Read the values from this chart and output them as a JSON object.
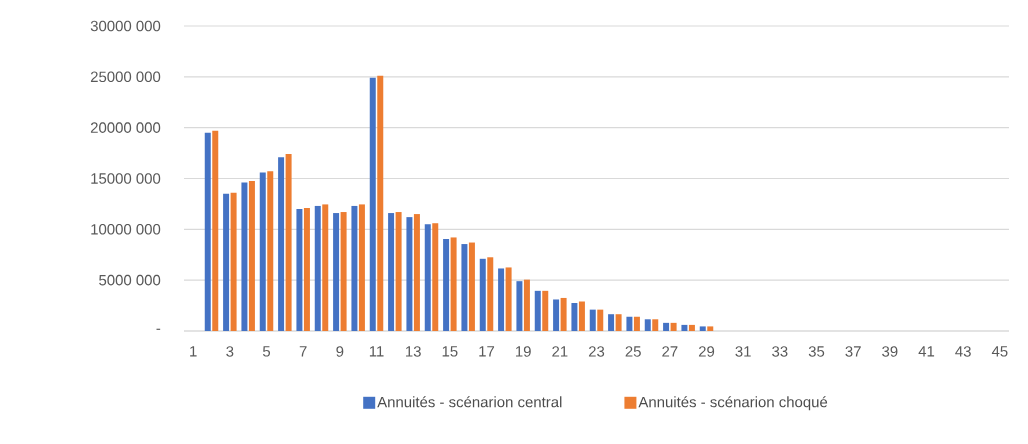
{
  "chart_data": {
    "type": "bar",
    "categories": [
      "1",
      null,
      "3",
      null,
      "5",
      null,
      "7",
      null,
      "9",
      null,
      "11",
      null,
      "13",
      null,
      "15",
      null,
      "17",
      null,
      "19",
      null,
      "21",
      null,
      "23",
      null,
      "25",
      null,
      "27",
      null,
      "29",
      null,
      "31",
      null,
      "33",
      null,
      "35",
      null,
      "37",
      null,
      "39",
      null,
      "41",
      null,
      "43",
      null,
      "45"
    ],
    "series": [
      {
        "name": "Annuités - scénarion central",
        "color": "#4472c4",
        "values": [
          0,
          19500000,
          13500000,
          14600000,
          15600000,
          17100000,
          12000000,
          12300000,
          11600000,
          12300000,
          24900000,
          11600000,
          11200000,
          10500000,
          9050000,
          8550000,
          7100000,
          6150000,
          4900000,
          3950000,
          3100000,
          2750000,
          2100000,
          1650000,
          1400000,
          1150000,
          800000,
          600000,
          450000,
          0,
          0,
          0,
          0,
          0,
          0,
          0,
          0,
          0,
          0,
          0,
          0,
          0,
          0,
          0,
          0
        ]
      },
      {
        "name": "Annuités - scénarion choqué",
        "color": "#ed7d31",
        "values": [
          0,
          19700000,
          13600000,
          14750000,
          15700000,
          17400000,
          12100000,
          12450000,
          11700000,
          12450000,
          25100000,
          11700000,
          11500000,
          10600000,
          9200000,
          8700000,
          7250000,
          6250000,
          5050000,
          3950000,
          3250000,
          2900000,
          2100000,
          1650000,
          1400000,
          1150000,
          800000,
          600000,
          450000,
          0,
          0,
          0,
          0,
          0,
          0,
          0,
          0,
          0,
          0,
          0,
          0,
          0,
          0,
          0,
          0
        ]
      }
    ],
    "ylim": [
      0,
      30000000
    ],
    "yticks": [
      {
        "value": 0,
        "label": "-"
      },
      {
        "value": 5000000,
        "label": "5000 000"
      },
      {
        "value": 10000000,
        "label": "10000 000"
      },
      {
        "value": 15000000,
        "label": "15000 000"
      },
      {
        "value": 20000000,
        "label": "20000 000"
      },
      {
        "value": 25000000,
        "label": "25000 000"
      },
      {
        "value": 30000000,
        "label": "30000 000"
      }
    ],
    "grid": "y",
    "legend": "bottom"
  }
}
